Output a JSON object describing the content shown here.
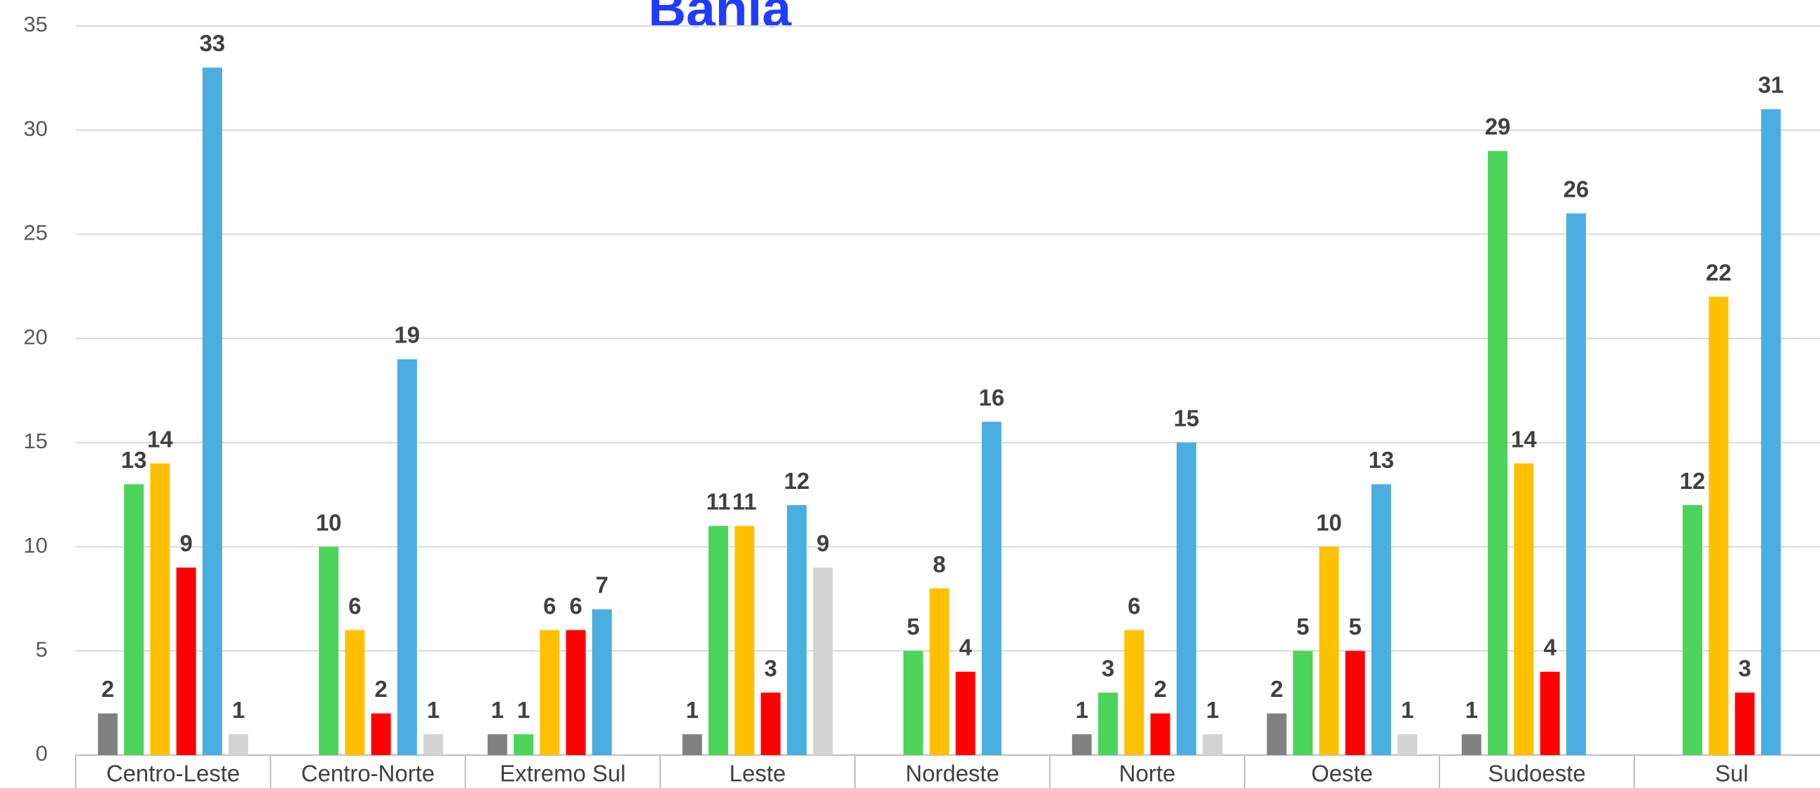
{
  "chart_data": {
    "type": "bar",
    "title": "Bahia",
    "categories": [
      "Centro-Leste",
      "Centro-Norte",
      "Extremo Sul",
      "Leste",
      "Nordeste",
      "Norte",
      "Oeste",
      "Sudoeste",
      "Sul"
    ],
    "series": [
      {
        "color": "#808080",
        "values": [
          2,
          null,
          1,
          1,
          null,
          1,
          2,
          1,
          null
        ]
      },
      {
        "color": "#4cd45a",
        "values": [
          13,
          10,
          1,
          11,
          5,
          3,
          5,
          29,
          12
        ]
      },
      {
        "color": "#ffc000",
        "values": [
          14,
          6,
          6,
          11,
          8,
          6,
          10,
          14,
          22
        ]
      },
      {
        "color": "#ff0000",
        "values": [
          9,
          2,
          6,
          3,
          4,
          2,
          5,
          4,
          3
        ]
      },
      {
        "color": "#4aaee0",
        "values": [
          33,
          19,
          7,
          12,
          16,
          15,
          13,
          26,
          31
        ]
      },
      {
        "color": "#d3d3d3",
        "values": [
          1,
          1,
          null,
          9,
          null,
          1,
          1,
          null,
          null
        ]
      }
    ],
    "ylim": [
      0,
      35
    ],
    "yticks": [
      0,
      5,
      10,
      15,
      20,
      25,
      30,
      35
    ],
    "grid": true
  }
}
